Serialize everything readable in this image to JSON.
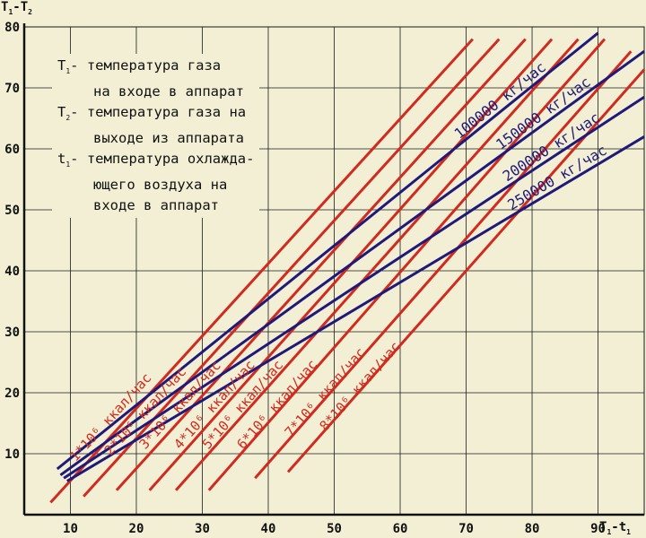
{
  "chart_data": {
    "type": "line",
    "title": "",
    "ylabel": {
      "main": "T",
      "s1": "1",
      "mid": "-T",
      "s2": "2"
    },
    "xlabel": {
      "main": "T",
      "s1": "1",
      "mid": "-t",
      "s2": "1"
    },
    "xlim": [
      3,
      97
    ],
    "ylim": [
      0,
      80
    ],
    "xticks": [
      10,
      20,
      30,
      40,
      50,
      60,
      70,
      80,
      90
    ],
    "yticks": [
      10,
      20,
      30,
      40,
      50,
      60,
      70,
      80
    ],
    "grid": true,
    "legend": {
      "l1_sym": "T",
      "l1_sub": "1",
      "l1_text": "- температура газа",
      "l2": "на входе в аппарат",
      "l3_sym": "T",
      "l3_sub": "2",
      "l3_text": "- температура газа на",
      "l4": "выходе из аппарата",
      "l5_sym": "t",
      "l5_sub": "1",
      "l5_text": "- температура охлажда-",
      "l6": "ющего воздуха на",
      "l7": "входе в аппарат"
    },
    "colors": {
      "flow": "#1f1a7a",
      "heat": "#d12a1e",
      "grid": "#1a1a1a",
      "bg": "#f2efd4"
    },
    "flow_series": [
      {
        "name": "100000 кг/час",
        "x": [
          8,
          90
        ],
        "y": [
          7.5,
          79
        ]
      },
      {
        "name": "150000 кг/час",
        "x": [
          8.5,
          97
        ],
        "y": [
          6.5,
          76
        ]
      },
      {
        "name": "200000 кг/час",
        "x": [
          9,
          97
        ],
        "y": [
          6,
          68.5
        ]
      },
      {
        "name": "250000 кг/час",
        "x": [
          9.5,
          97
        ],
        "y": [
          5.5,
          62
        ]
      }
    ],
    "heat_series": [
      {
        "name": "1*10⁶ ккал/час",
        "x": [
          7,
          71
        ],
        "y": [
          2,
          78
        ]
      },
      {
        "name": "2*10⁶ ккал/час",
        "x": [
          12,
          75
        ],
        "y": [
          3,
          78
        ]
      },
      {
        "name": "3*10⁶ ккал/час",
        "x": [
          17,
          79
        ],
        "y": [
          4,
          78
        ]
      },
      {
        "name": "4*10⁶ ккал/час",
        "x": [
          22,
          83
        ],
        "y": [
          4,
          78
        ]
      },
      {
        "name": "5*10⁶ ккал/час",
        "x": [
          26,
          87
        ],
        "y": [
          4,
          78
        ]
      },
      {
        "name": "6*10⁶ ккал/час",
        "x": [
          31,
          91
        ],
        "y": [
          4,
          78
        ]
      },
      {
        "name": "7*10⁶ ккал/час",
        "x": [
          38,
          95
        ],
        "y": [
          6,
          76
        ]
      },
      {
        "name": "8*10⁶ ккал/час",
        "x": [
          43,
          97
        ],
        "y": [
          7,
          73
        ]
      }
    ]
  }
}
